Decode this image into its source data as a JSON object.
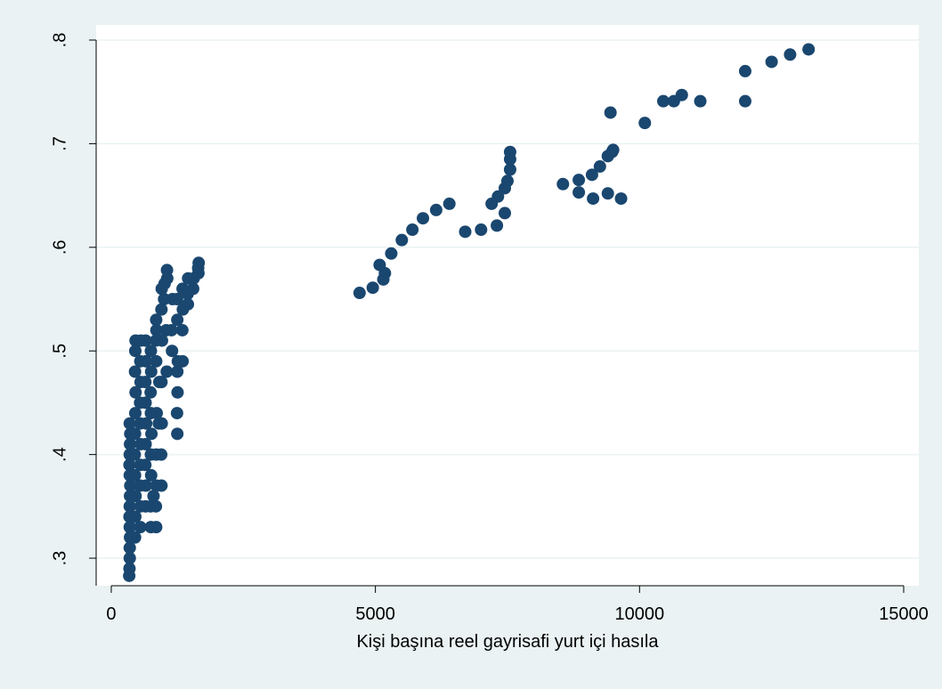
{
  "chart_data": {
    "type": "scatter",
    "x_label": "Kişi başına reel gayrisafi yurt içi hasıla",
    "xlim": [
      -286,
      15287
    ],
    "ylim": [
      0.2734,
      0.8146
    ],
    "xticks": [
      0,
      5000,
      10000,
      15000
    ],
    "yticks": [
      {
        "value": 0.3,
        "label": ".3"
      },
      {
        "value": 0.4,
        "label": ".4"
      },
      {
        "value": 0.5,
        "label": ".5"
      },
      {
        "value": 0.6,
        "label": ".6"
      },
      {
        "value": 0.7,
        "label": ".7"
      },
      {
        "value": 0.8,
        "label": ".8"
      }
    ],
    "grid": true,
    "series": [
      {
        "color": "#1a476f",
        "x": [
          340,
          345,
          350,
          350,
          355,
          350,
          345,
          350,
          355,
          360,
          350,
          345,
          350,
          355,
          360,
          350,
          450,
          455,
          460,
          450,
          445,
          450,
          455,
          460,
          450,
          455,
          460,
          550,
          555,
          545,
          550,
          560,
          550,
          545,
          555,
          550,
          560,
          650,
          655,
          645,
          650,
          660,
          650,
          645,
          655,
          650,
          750,
          745,
          755,
          750,
          760,
          750,
          745,
          755,
          750,
          850,
          845,
          855,
          850,
          860,
          850,
          845,
          855,
          850,
          950,
          945,
          955,
          950,
          960,
          950,
          955,
          1050,
          1040,
          1060,
          1055,
          1000,
          1010,
          1150,
          1140,
          1160,
          1250,
          1245,
          1255,
          1250,
          1260,
          1250,
          1245,
          1350,
          1345,
          1355,
          1350,
          1450,
          1445,
          1455,
          1550,
          1560,
          1650,
          1645,
          1655,
          900,
          910,
          800,
          4700,
          4950,
          5080,
          5150,
          5180,
          5300,
          5500,
          5700,
          5900,
          6150,
          6400,
          6700,
          7000,
          7200,
          7300,
          7320,
          7450,
          7450,
          7500,
          7550,
          7550,
          7550,
          8550,
          8850,
          8850,
          9100,
          9120,
          9250,
          9400,
          9400,
          9450,
          9480,
          9500,
          9650,
          10100,
          10450,
          10650,
          10800,
          11150,
          12000,
          12000,
          12500,
          12850,
          13200
        ],
        "values": [
          0.283,
          0.29,
          0.3,
          0.31,
          0.32,
          0.33,
          0.34,
          0.35,
          0.36,
          0.37,
          0.38,
          0.39,
          0.4,
          0.41,
          0.42,
          0.43,
          0.32,
          0.34,
          0.36,
          0.38,
          0.4,
          0.42,
          0.44,
          0.46,
          0.48,
          0.5,
          0.51,
          0.33,
          0.35,
          0.37,
          0.39,
          0.41,
          0.43,
          0.45,
          0.47,
          0.49,
          0.51,
          0.35,
          0.37,
          0.39,
          0.41,
          0.43,
          0.45,
          0.47,
          0.49,
          0.51,
          0.33,
          0.35,
          0.38,
          0.4,
          0.42,
          0.44,
          0.46,
          0.48,
          0.5,
          0.33,
          0.35,
          0.37,
          0.4,
          0.44,
          0.49,
          0.51,
          0.52,
          0.53,
          0.37,
          0.4,
          0.43,
          0.47,
          0.51,
          0.54,
          0.56,
          0.48,
          0.52,
          0.57,
          0.578,
          0.55,
          0.565,
          0.5,
          0.52,
          0.55,
          0.42,
          0.44,
          0.46,
          0.48,
          0.49,
          0.53,
          0.55,
          0.49,
          0.52,
          0.54,
          0.56,
          0.545,
          0.555,
          0.57,
          0.56,
          0.57,
          0.575,
          0.58,
          0.585,
          0.43,
          0.47,
          0.36,
          0.556,
          0.561,
          0.583,
          0.569,
          0.575,
          0.594,
          0.607,
          0.617,
          0.628,
          0.636,
          0.642,
          0.615,
          0.617,
          0.642,
          0.621,
          0.649,
          0.633,
          0.657,
          0.664,
          0.675,
          0.685,
          0.692,
          0.661,
          0.653,
          0.665,
          0.67,
          0.647,
          0.678,
          0.652,
          0.688,
          0.73,
          0.692,
          0.694,
          0.647,
          0.72,
          0.741,
          0.741,
          0.747,
          0.741,
          0.741,
          0.77,
          0.779,
          0.786,
          0.791
        ]
      }
    ]
  }
}
